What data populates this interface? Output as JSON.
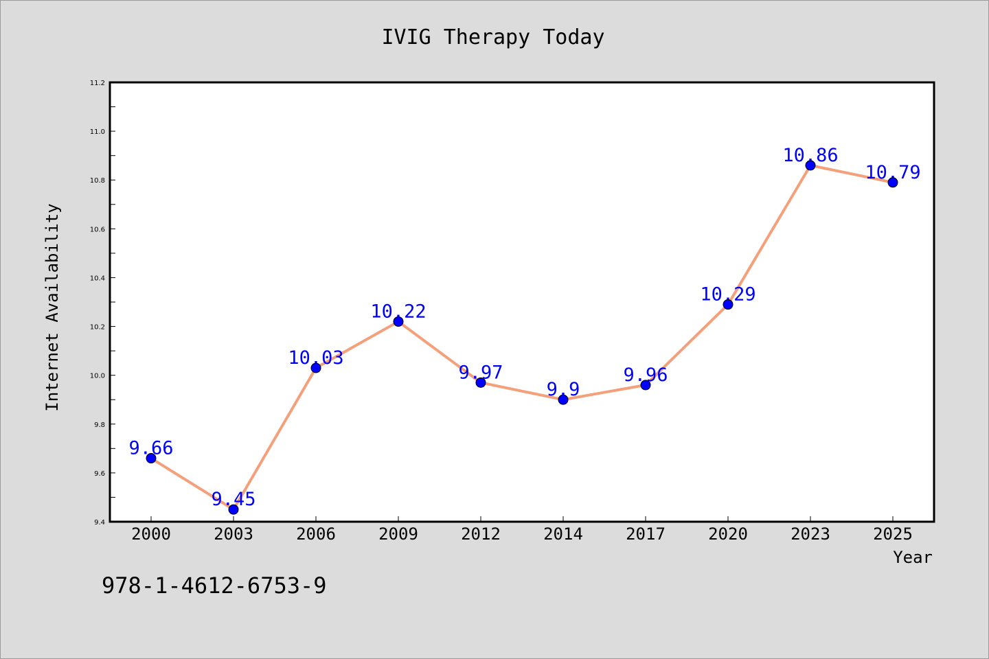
{
  "chart_data": {
    "type": "line",
    "title": "IVIG Therapy Today",
    "xlabel": "Year",
    "ylabel": "Internet Availability",
    "categories": [
      "2000",
      "2003",
      "2006",
      "2009",
      "2012",
      "2014",
      "2017",
      "2020",
      "2023",
      "2025"
    ],
    "values": [
      9.66,
      9.45,
      10.03,
      10.22,
      9.97,
      9.9,
      9.96,
      10.29,
      10.86,
      10.79
    ],
    "data_labels": [
      "9.66",
      "9.45",
      "10.03",
      "10.22",
      "9.97",
      "9.9",
      "9.96",
      "10.29",
      "10.86",
      "10.79"
    ],
    "ylim": [
      9.4,
      11.2
    ],
    "yticks": [
      "9.4",
      "9.6",
      "9.8",
      "10.0",
      "10.2",
      "10.4",
      "10.6",
      "10.8",
      "11.0",
      "11.2"
    ],
    "grid": false,
    "legend": "none",
    "line_color": "#f4a07a",
    "marker_color": "#0000ff",
    "label_color": "#0000ff",
    "background": "#dcdcdc",
    "plot_background": "#ffffff"
  },
  "footer": {
    "isbn": "978-1-4612-6753-9"
  }
}
